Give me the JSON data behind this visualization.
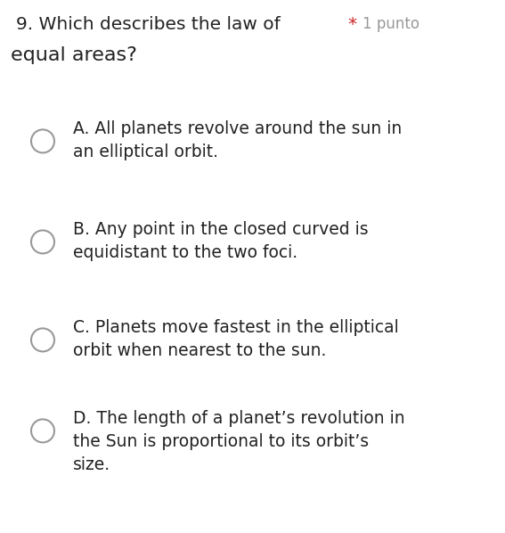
{
  "background_color": "#ffffff",
  "question_number": "9.",
  "question_line1": " Which describes the law of",
  "question_line2": "equal areas?",
  "asterisk": "*",
  "punto": "  1 punto",
  "asterisk_color": "#cc2222",
  "punto_color": "#999999",
  "options": [
    {
      "lines": [
        "A. All planets revolve around the sun in",
        "an elliptical orbit."
      ]
    },
    {
      "lines": [
        "B. Any point in the closed curved is",
        "equidistant to the two foci."
      ]
    },
    {
      "lines": [
        "C. Planets move fastest in the elliptical",
        "orbit when nearest to the sun."
      ]
    },
    {
      "lines": [
        "D. The length of a planet’s revolution in",
        "the Sun is proportional to its orbit’s",
        "size."
      ]
    }
  ],
  "circle_color": "#999999",
  "text_color": "#222222",
  "question_fontsize": 14.5,
  "option_fontsize": 13.5,
  "punto_fontsize": 12.0,
  "fig_width": 5.67,
  "fig_height": 5.98,
  "dpi": 100
}
